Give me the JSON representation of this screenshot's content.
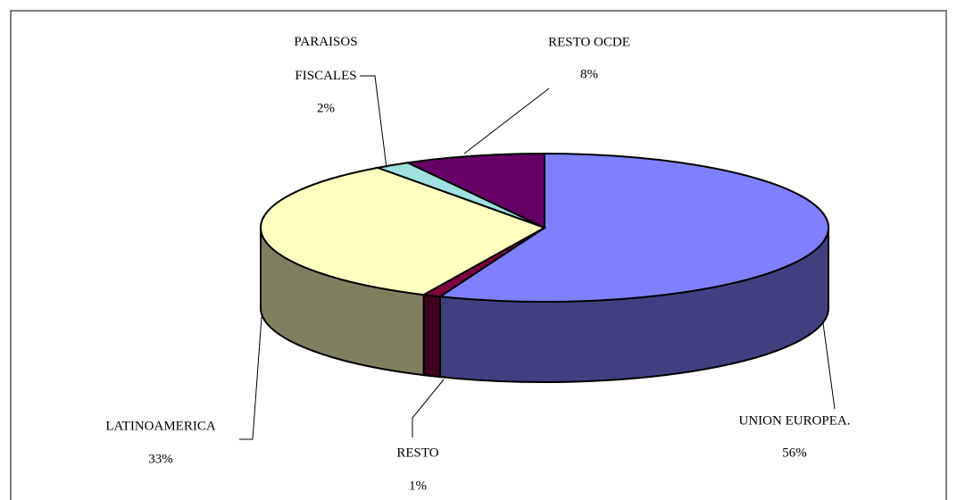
{
  "chart_data": {
    "type": "pie",
    "categories": [
      "UNION EUROPEA.",
      "RESTO",
      "LATINOAMERICA",
      "PARAISOS FISCALES",
      "RESTO OCDE"
    ],
    "values": [
      56,
      1,
      33,
      2,
      8
    ],
    "value_labels": [
      "56%",
      "1%",
      "33%",
      "2%",
      "8%"
    ],
    "colors": [
      "#8080ff",
      "#800040",
      "#ffffc0",
      "#a0e0e0",
      "#660066"
    ],
    "side_colors": [
      "#404080",
      "#400020",
      "#808060",
      "#508080",
      "#330033"
    ]
  }
}
